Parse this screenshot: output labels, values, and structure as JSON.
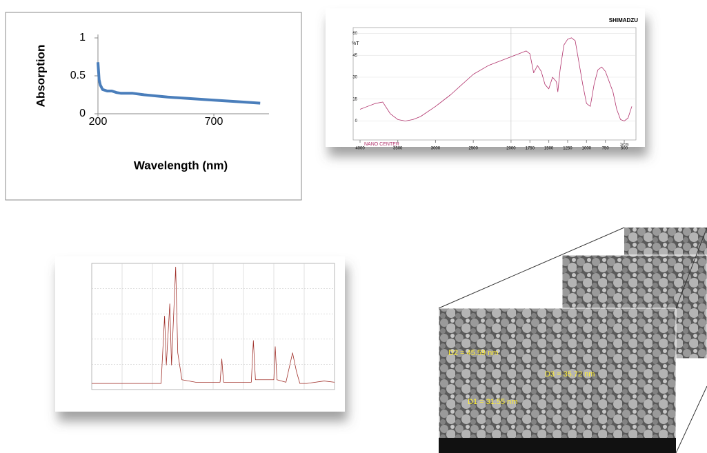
{
  "chart_data": [
    {
      "type": "line",
      "ylabel": "Absorption",
      "xlabel": "Wavelength (nm)",
      "x": [
        200,
        205,
        210,
        220,
        240,
        260,
        280,
        300,
        350,
        400,
        500,
        600,
        700,
        800,
        900
      ],
      "values": [
        0.68,
        0.45,
        0.38,
        0.32,
        0.3,
        0.3,
        0.28,
        0.27,
        0.27,
        0.25,
        0.22,
        0.2,
        0.18,
        0.16,
        0.14
      ],
      "color": "#4a7ebb",
      "xlim": [
        200,
        938
      ],
      "ylim": [
        0,
        1
      ],
      "xticks": [
        200,
        700
      ],
      "yticks": [
        0,
        0.5,
        1
      ]
    },
    {
      "type": "line",
      "brand": "SHIMADZU",
      "footer": "NANO CENTER",
      "ylabel": "%T",
      "xlabel": "1/cm",
      "x": [
        4000,
        3900,
        3800,
        3700,
        3600,
        3500,
        3400,
        3300,
        3200,
        3000,
        2800,
        2500,
        2300,
        2000,
        1800,
        1750,
        1700,
        1650,
        1600,
        1550,
        1500,
        1450,
        1400,
        1380,
        1350,
        1300,
        1250,
        1200,
        1150,
        1100,
        1050,
        1000,
        950,
        900,
        850,
        800,
        750,
        650,
        600,
        550,
        500,
        450,
        400
      ],
      "values": [
        8,
        10,
        12,
        13,
        5,
        1,
        0,
        1,
        3,
        10,
        18,
        32,
        38,
        44,
        48,
        46,
        33,
        38,
        34,
        25,
        22,
        30,
        27,
        20,
        35,
        52,
        56,
        57,
        55,
        40,
        25,
        12,
        10,
        25,
        35,
        37,
        34,
        20,
        8,
        1,
        0,
        2,
        10
      ],
      "color": "#b0306a",
      "xlim": [
        4000,
        400
      ],
      "ylim": [
        -13,
        64
      ],
      "xticks": [
        4000,
        3500,
        3000,
        2500,
        2000,
        1750,
        1500,
        1250,
        1000,
        750,
        500
      ],
      "yticks": [
        0,
        15,
        30,
        45,
        60
      ]
    },
    {
      "type": "line",
      "x": [
        10,
        20,
        30,
        31,
        31.5,
        32.5,
        33,
        34.2,
        34.8,
        36,
        40,
        47,
        47.5,
        48,
        56,
        56.6,
        57.2,
        62.5,
        62.9,
        63.4,
        66,
        67.9,
        69,
        70,
        72,
        77,
        80
      ],
      "values": [
        5,
        5,
        5,
        60,
        20,
        70,
        20,
        100,
        30,
        8,
        6,
        6,
        25,
        6,
        6,
        40,
        8,
        8,
        35,
        8,
        6,
        30,
        15,
        5,
        5,
        7,
        6
      ],
      "color": "#a0302a",
      "xlim": [
        10,
        80
      ],
      "ylim": [
        0,
        103
      ]
    }
  ],
  "sem": {
    "labels": [
      "D2 = 45.59 nm",
      "D3 = 35.72 nm",
      "D1 = 31.55 nm"
    ]
  }
}
